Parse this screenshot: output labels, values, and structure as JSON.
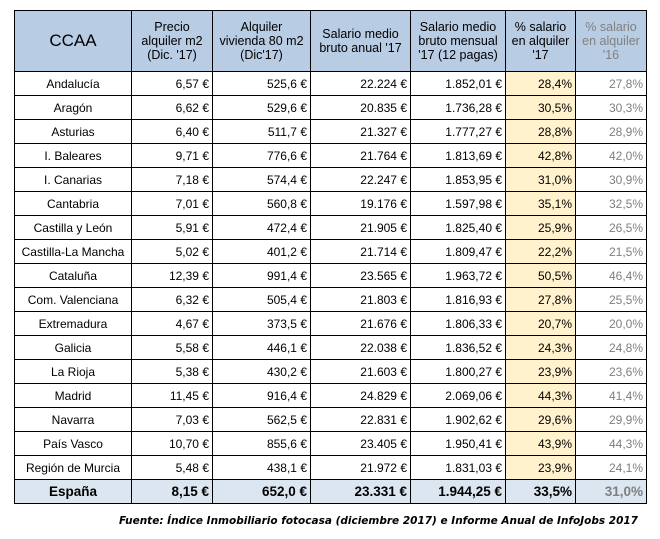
{
  "headers": [
    "CCAA",
    "Precio alquiler m2 (Dic. '17)",
    "Alquiler vivienda 80 m2 (Dic'17)",
    "Salario medio bruto anual '17",
    "Salario medio bruto mensual '17 (12 pagas)",
    "% salario en alquiler '17",
    "% salario en alquiler '16"
  ],
  "rows": [
    [
      "Andalucía",
      "6,57 €",
      "525,6 €",
      "22.224 €",
      "1.852,01 €",
      "28,4%",
      "27,8%"
    ],
    [
      "Aragón",
      "6,62 €",
      "529,6 €",
      "20.835 €",
      "1.736,28 €",
      "30,5%",
      "30,3%"
    ],
    [
      "Asturias",
      "6,40 €",
      "511,7 €",
      "21.327 €",
      "1.777,27 €",
      "28,8%",
      "28,9%"
    ],
    [
      "I. Baleares",
      "9,71 €",
      "776,6 €",
      "21.764 €",
      "1.813,69 €",
      "42,8%",
      "42,0%"
    ],
    [
      "I. Canarias",
      "7,18 €",
      "574,4 €",
      "22.247 €",
      "1.853,95 €",
      "31,0%",
      "30,9%"
    ],
    [
      "Cantabria",
      "7,01 €",
      "560,8 €",
      "19.176 €",
      "1.597,98 €",
      "35,1%",
      "32,5%"
    ],
    [
      "Castilla y León",
      "5,91 €",
      "472,4 €",
      "21.905 €",
      "1.825,40 €",
      "25,9%",
      "26,5%"
    ],
    [
      "Castilla-La Mancha",
      "5,02 €",
      "401,2 €",
      "21.714 €",
      "1.809,47 €",
      "22,2%",
      "21,5%"
    ],
    [
      "Cataluña",
      "12,39 €",
      "991,4 €",
      "23.565 €",
      "1.963,72 €",
      "50,5%",
      "46,4%"
    ],
    [
      "Com. Valenciana",
      "6,32 €",
      "505,4 €",
      "21.803 €",
      "1.816,93 €",
      "27,8%",
      "25,5%"
    ],
    [
      "Extremadura",
      "4,67 €",
      "373,5 €",
      "21.676 €",
      "1.806,33 €",
      "20,7%",
      "20,0%"
    ],
    [
      "Galicia",
      "5,58 €",
      "446,1 €",
      "22.038 €",
      "1.836,52 €",
      "24,3%",
      "24,8%"
    ],
    [
      "La Rioja",
      "5,38 €",
      "430,2 €",
      "21.603 €",
      "1.800,27 €",
      "23,9%",
      "23,6%"
    ],
    [
      "Madrid",
      "11,45 €",
      "916,4 €",
      "24.829 €",
      "2.069,06 €",
      "44,3%",
      "41,4%"
    ],
    [
      "Navarra",
      "7,03 €",
      "562,5 €",
      "22.831 €",
      "1.902,62 €",
      "29,6%",
      "29,9%"
    ],
    [
      "País Vasco",
      "10,70 €",
      "855,6 €",
      "23.405 €",
      "1.950,41 €",
      "43,9%",
      "44,3%"
    ],
    [
      "Región de Murcia",
      "5,48 €",
      "438,1 €",
      "21.972 €",
      "1.831,03 €",
      "23,9%",
      "24,1%"
    ]
  ],
  "total": [
    "España",
    "8,15 €",
    "652,0 €",
    "23.331 €",
    "1.944,25 €",
    "33,5%",
    "31,0%"
  ],
  "source": "Fuente: Índice Inmobiliario fotocasa (diciembre 2017) e Informe Anual de InfoJobs 2017"
}
